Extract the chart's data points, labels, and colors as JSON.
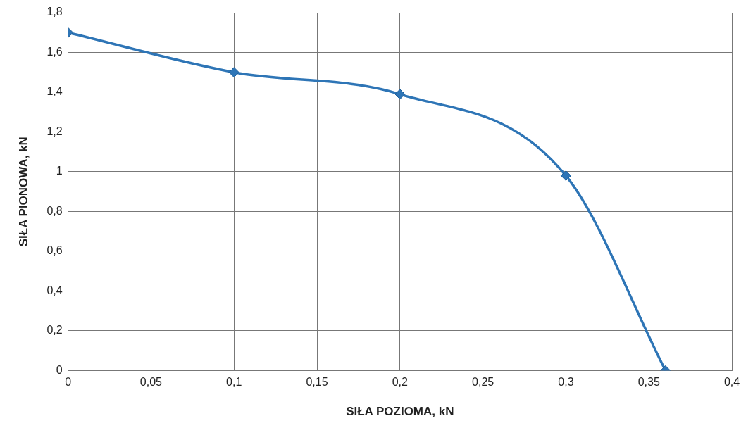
{
  "chart_data": {
    "type": "line",
    "xlabel": "SIŁA POZIOMA, kN",
    "ylabel": "SIŁA PIONOWA, kN",
    "x": [
      0,
      0.1,
      0.2,
      0.3,
      0.36
    ],
    "series": [
      {
        "color": "#2e75b6",
        "values": [
          1.7,
          1.5,
          1.39,
          0.98,
          0
        ]
      }
    ],
    "xlim": [
      0,
      0.4
    ],
    "xticks": [
      {
        "value": 0,
        "label": "0"
      },
      {
        "value": 0.05,
        "label": "0,05"
      },
      {
        "value": 0.1,
        "label": "0,1"
      },
      {
        "value": 0.15,
        "label": "0,15"
      },
      {
        "value": 0.2,
        "label": "0,2"
      },
      {
        "value": 0.25,
        "label": "0,25"
      },
      {
        "value": 0.3,
        "label": "0,3"
      },
      {
        "value": 0.35,
        "label": "0,35"
      },
      {
        "value": 0.4,
        "label": "0,4"
      }
    ],
    "ylim": [
      0,
      1.8
    ],
    "yticks": [
      {
        "value": 0,
        "label": "0"
      },
      {
        "value": 0.2,
        "label": "0,2"
      },
      {
        "value": 0.4,
        "label": "0,4"
      },
      {
        "value": 0.6,
        "label": "0,6"
      },
      {
        "value": 0.8,
        "label": "0,8"
      },
      {
        "value": 1,
        "label": "1"
      },
      {
        "value": 1.2,
        "label": "1,2"
      },
      {
        "value": 1.4,
        "label": "1,4"
      },
      {
        "value": 1.6,
        "label": "1,6"
      },
      {
        "value": 1.8,
        "label": "1,8"
      }
    ],
    "grid": true,
    "legend": false,
    "marker": "diamond",
    "line_style": "solid"
  }
}
